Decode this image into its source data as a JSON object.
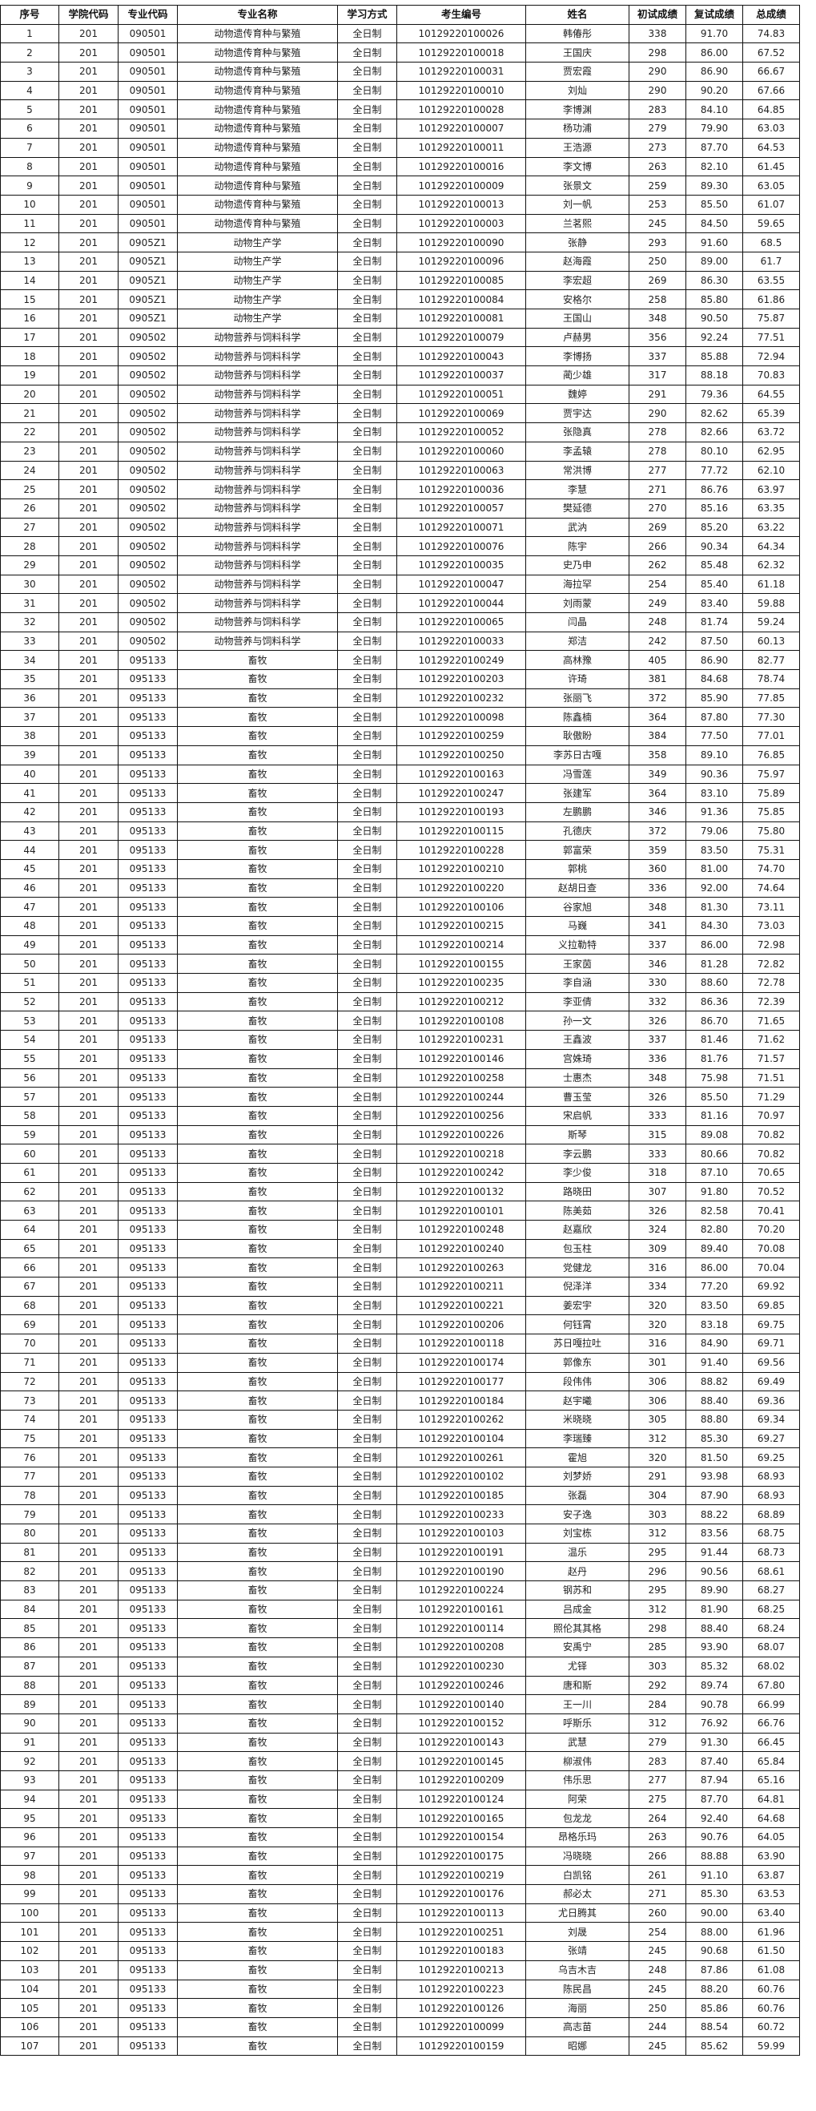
{
  "table": {
    "headers": [
      "序号",
      "学院代码",
      "专业代码",
      "专业名称",
      "学习方式",
      "考生编号",
      "姓名",
      "初试成绩",
      "复试成绩",
      "总成绩"
    ],
    "groups": [
      {
        "college": "201",
        "major_code": "090501",
        "major_name": "动物遗传育种与繁殖",
        "mode": "全日制",
        "rows": [
          [
            "1",
            "10129220100026",
            "韩偆彤",
            "338",
            "91.70",
            "74.83"
          ],
          [
            "2",
            "10129220100018",
            "王国庆",
            "298",
            "86.00",
            "67.52"
          ],
          [
            "3",
            "10129220100031",
            "贾宏霞",
            "290",
            "86.90",
            "66.67"
          ],
          [
            "4",
            "10129220100010",
            "刘灿",
            "290",
            "90.20",
            "67.66"
          ],
          [
            "5",
            "10129220100028",
            "李博渊",
            "283",
            "84.10",
            "64.85"
          ],
          [
            "6",
            "10129220100007",
            "杨功浦",
            "279",
            "79.90",
            "63.03"
          ],
          [
            "7",
            "10129220100011",
            "王浩源",
            "273",
            "87.70",
            "64.53"
          ],
          [
            "8",
            "10129220100016",
            "李文博",
            "263",
            "82.10",
            "61.45"
          ],
          [
            "9",
            "10129220100009",
            "张景文",
            "259",
            "89.30",
            "63.05"
          ],
          [
            "10",
            "10129220100013",
            "刘一帆",
            "253",
            "85.50",
            "61.07"
          ],
          [
            "11",
            "10129220100003",
            "兰茗熙",
            "245",
            "84.50",
            "59.65"
          ]
        ]
      },
      {
        "college": "201",
        "major_code": "0905Z1",
        "major_name": "动物生产学",
        "mode": "全日制",
        "rows": [
          [
            "12",
            "10129220100090",
            "张静",
            "293",
            "91.60",
            "68.5"
          ],
          [
            "13",
            "10129220100096",
            "赵海霞",
            "250",
            "89.00",
            "61.7"
          ],
          [
            "14",
            "10129220100085",
            "李宏超",
            "269",
            "86.30",
            "63.55"
          ],
          [
            "15",
            "10129220100084",
            "安格尔",
            "258",
            "85.80",
            "61.86"
          ],
          [
            "16",
            "10129220100081",
            "王国山",
            "348",
            "90.50",
            "75.87"
          ]
        ]
      },
      {
        "college": "201",
        "major_code": "090502",
        "major_name": "动物营养与饲料科学",
        "mode": "全日制",
        "rows": [
          [
            "17",
            "10129220100079",
            "卢赫男",
            "356",
            "92.24",
            "77.51"
          ],
          [
            "18",
            "10129220100043",
            "李博扬",
            "337",
            "85.88",
            "72.94"
          ],
          [
            "19",
            "10129220100037",
            "蔺少雄",
            "317",
            "88.18",
            "70.83"
          ],
          [
            "20",
            "10129220100051",
            "魏婷",
            "291",
            "79.36",
            "64.55"
          ],
          [
            "21",
            "10129220100069",
            "贾宇达",
            "290",
            "82.62",
            "65.39"
          ],
          [
            "22",
            "10129220100052",
            "张隐真",
            "278",
            "82.66",
            "63.72"
          ],
          [
            "23",
            "10129220100060",
            "李孟辕",
            "278",
            "80.10",
            "62.95"
          ],
          [
            "24",
            "10129220100063",
            "常洪博",
            "277",
            "77.72",
            "62.10"
          ],
          [
            "25",
            "10129220100036",
            "李慧",
            "271",
            "86.76",
            "63.97"
          ],
          [
            "26",
            "10129220100057",
            "樊延德",
            "270",
            "85.16",
            "63.35"
          ],
          [
            "27",
            "10129220100071",
            "武汭",
            "269",
            "85.20",
            "63.22"
          ],
          [
            "28",
            "10129220100076",
            "陈宇",
            "266",
            "90.34",
            "64.34"
          ],
          [
            "29",
            "10129220100035",
            "史乃申",
            "262",
            "85.48",
            "62.32"
          ],
          [
            "30",
            "10129220100047",
            "海拉罕",
            "254",
            "85.40",
            "61.18"
          ],
          [
            "31",
            "10129220100044",
            "刘雨蒙",
            "249",
            "83.40",
            "59.88"
          ],
          [
            "32",
            "10129220100065",
            "闫晶",
            "248",
            "81.74",
            "59.24"
          ],
          [
            "33",
            "10129220100033",
            "郑洁",
            "242",
            "87.50",
            "60.13"
          ]
        ]
      },
      {
        "college": "201",
        "major_code": "095133",
        "major_name": "畜牧",
        "mode": "全日制",
        "rows": [
          [
            "34",
            "10129220100249",
            "高林豫",
            "405",
            "86.90",
            "82.77"
          ],
          [
            "35",
            "10129220100203",
            "许琦",
            "381",
            "84.68",
            "78.74"
          ],
          [
            "36",
            "10129220100232",
            "张丽飞",
            "372",
            "85.90",
            "77.85"
          ],
          [
            "37",
            "10129220100098",
            "陈鑫楠",
            "364",
            "87.80",
            "77.30"
          ],
          [
            "38",
            "10129220100259",
            "耿傲盼",
            "384",
            "77.50",
            "77.01"
          ],
          [
            "39",
            "10129220100250",
            "李苏日古嘎",
            "358",
            "89.10",
            "76.85"
          ],
          [
            "40",
            "10129220100163",
            "冯雪莲",
            "349",
            "90.36",
            "75.97"
          ],
          [
            "41",
            "10129220100247",
            "张建军",
            "364",
            "83.10",
            "75.89"
          ],
          [
            "42",
            "10129220100193",
            "左鹏鹏",
            "346",
            "91.36",
            "75.85"
          ],
          [
            "43",
            "10129220100115",
            "孔德庆",
            "372",
            "79.06",
            "75.80"
          ],
          [
            "44",
            "10129220100228",
            "郭富荣",
            "359",
            "83.50",
            "75.31"
          ],
          [
            "45",
            "10129220100210",
            "郭桃",
            "360",
            "81.00",
            "74.70"
          ],
          [
            "46",
            "10129220100220",
            "赵胡日查",
            "336",
            "92.00",
            "74.64"
          ],
          [
            "47",
            "10129220100106",
            "谷家旭",
            "348",
            "81.30",
            "73.11"
          ],
          [
            "48",
            "10129220100215",
            "马巍",
            "341",
            "84.30",
            "73.03"
          ],
          [
            "49",
            "10129220100214",
            "义拉勒特",
            "337",
            "86.00",
            "72.98"
          ],
          [
            "50",
            "10129220100155",
            "王家茵",
            "346",
            "81.28",
            "72.82"
          ],
          [
            "51",
            "10129220100235",
            "李自涵",
            "330",
            "88.60",
            "72.78"
          ],
          [
            "52",
            "10129220100212",
            "李亚倩",
            "332",
            "86.36",
            "72.39"
          ],
          [
            "53",
            "10129220100108",
            "孙一文",
            "326",
            "86.70",
            "71.65"
          ],
          [
            "54",
            "10129220100231",
            "王鑫波",
            "337",
            "81.46",
            "71.62"
          ],
          [
            "55",
            "10129220100146",
            "宫姝琦",
            "336",
            "81.76",
            "71.57"
          ],
          [
            "56",
            "10129220100258",
            "士惠杰",
            "348",
            "75.98",
            "71.51"
          ],
          [
            "57",
            "10129220100244",
            "曹玉莹",
            "326",
            "85.50",
            "71.29"
          ],
          [
            "58",
            "10129220100256",
            "宋启帆",
            "333",
            "81.16",
            "70.97"
          ],
          [
            "59",
            "10129220100226",
            "斯琴",
            "315",
            "89.08",
            "70.82"
          ],
          [
            "60",
            "10129220100218",
            "李云鹏",
            "333",
            "80.66",
            "70.82"
          ],
          [
            "61",
            "10129220100242",
            "李少俊",
            "318",
            "87.10",
            "70.65"
          ],
          [
            "62",
            "10129220100132",
            "路晓田",
            "307",
            "91.80",
            "70.52"
          ],
          [
            "63",
            "10129220100101",
            "陈美茹",
            "326",
            "82.58",
            "70.41"
          ],
          [
            "64",
            "10129220100248",
            "赵嘉欣",
            "324",
            "82.80",
            "70.20"
          ],
          [
            "65",
            "10129220100240",
            "包玉柱",
            "309",
            "89.40",
            "70.08"
          ],
          [
            "66",
            "10129220100263",
            "党健龙",
            "316",
            "86.00",
            "70.04"
          ],
          [
            "67",
            "10129220100211",
            "倪泽洋",
            "334",
            "77.20",
            "69.92"
          ],
          [
            "68",
            "10129220100221",
            "姜宏宇",
            "320",
            "83.50",
            "69.85"
          ],
          [
            "69",
            "10129220100206",
            "何钰霄",
            "320",
            "83.18",
            "69.75"
          ],
          [
            "70",
            "10129220100118",
            "苏日嘎拉吐",
            "316",
            "84.90",
            "69.71"
          ],
          [
            "71",
            "10129220100174",
            "郭像东",
            "301",
            "91.40",
            "69.56"
          ],
          [
            "72",
            "10129220100177",
            "段伟伟",
            "306",
            "88.82",
            "69.49"
          ],
          [
            "73",
            "10129220100184",
            "赵宇曦",
            "306",
            "88.40",
            "69.36"
          ],
          [
            "74",
            "10129220100262",
            "米晓晓",
            "305",
            "88.80",
            "69.34"
          ],
          [
            "75",
            "10129220100104",
            "李瑞臻",
            "312",
            "85.30",
            "69.27"
          ],
          [
            "76",
            "10129220100261",
            "霍旭",
            "320",
            "81.50",
            "69.25"
          ],
          [
            "77",
            "10129220100102",
            "刘梦娇",
            "291",
            "93.98",
            "68.93"
          ],
          [
            "78",
            "10129220100185",
            "张磊",
            "304",
            "87.90",
            "68.93"
          ],
          [
            "79",
            "10129220100233",
            "安子逸",
            "303",
            "88.22",
            "68.89"
          ],
          [
            "80",
            "10129220100103",
            "刘宝栋",
            "312",
            "83.56",
            "68.75"
          ],
          [
            "81",
            "10129220100191",
            "温乐",
            "295",
            "91.44",
            "68.73"
          ],
          [
            "82",
            "10129220100190",
            "赵丹",
            "296",
            "90.56",
            "68.61"
          ],
          [
            "83",
            "10129220100224",
            "钢苏和",
            "295",
            "89.90",
            "68.27"
          ],
          [
            "84",
            "10129220100161",
            "吕成金",
            "312",
            "81.90",
            "68.25"
          ],
          [
            "85",
            "10129220100114",
            "照伦其其格",
            "298",
            "88.40",
            "68.24"
          ],
          [
            "86",
            "10129220100208",
            "安禹宁",
            "285",
            "93.90",
            "68.07"
          ],
          [
            "87",
            "10129220100230",
            "尤铎",
            "303",
            "85.32",
            "68.02"
          ],
          [
            "88",
            "10129220100246",
            "唐和斯",
            "292",
            "89.74",
            "67.80"
          ],
          [
            "89",
            "10129220100140",
            "王一川",
            "284",
            "90.78",
            "66.99"
          ],
          [
            "90",
            "10129220100152",
            "呼斯乐",
            "312",
            "76.92",
            "66.76"
          ],
          [
            "91",
            "10129220100143",
            "武慧",
            "279",
            "91.30",
            "66.45"
          ],
          [
            "92",
            "10129220100145",
            "柳淑伟",
            "283",
            "87.40",
            "65.84"
          ],
          [
            "93",
            "10129220100209",
            "伟乐思",
            "277",
            "87.94",
            "65.16"
          ],
          [
            "94",
            "10129220100124",
            "阿荣",
            "275",
            "87.70",
            "64.81"
          ],
          [
            "95",
            "10129220100165",
            "包龙龙",
            "264",
            "92.40",
            "64.68"
          ],
          [
            "96",
            "10129220100154",
            "昂格乐玛",
            "263",
            "90.76",
            "64.05"
          ],
          [
            "97",
            "10129220100175",
            "冯晓晓",
            "266",
            "88.88",
            "63.90"
          ],
          [
            "98",
            "10129220100219",
            "白凯铭",
            "261",
            "91.10",
            "63.87"
          ],
          [
            "99",
            "10129220100176",
            "郝必太",
            "271",
            "85.30",
            "63.53"
          ],
          [
            "100",
            "10129220100113",
            "尤日腾其",
            "260",
            "90.00",
            "63.40"
          ],
          [
            "101",
            "10129220100251",
            "刘晟",
            "254",
            "88.00",
            "61.96"
          ],
          [
            "102",
            "10129220100183",
            "张靖",
            "245",
            "90.68",
            "61.50"
          ],
          [
            "103",
            "10129220100213",
            "乌吉木吉",
            "248",
            "87.86",
            "61.08"
          ],
          [
            "104",
            "10129220100223",
            "陈民昌",
            "245",
            "88.20",
            "60.76"
          ],
          [
            "105",
            "10129220100126",
            "海丽",
            "250",
            "85.86",
            "60.76"
          ],
          [
            "106",
            "10129220100099",
            "高志苗",
            "244",
            "88.54",
            "60.72"
          ],
          [
            "107",
            "10129220100159",
            "昭娜",
            "245",
            "85.62",
            "59.99"
          ]
        ]
      }
    ]
  }
}
